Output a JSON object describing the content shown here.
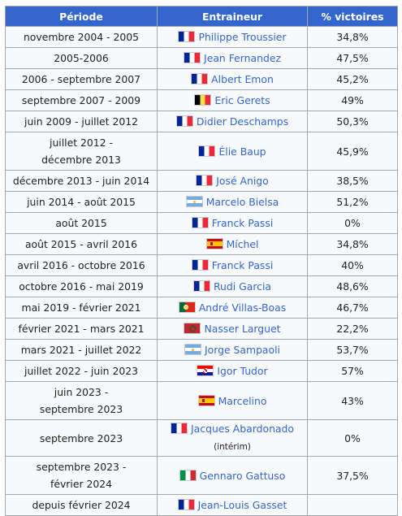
{
  "table": {
    "headers": {
      "period": "Période",
      "coach": "Entraineur",
      "win_pct": "% victoires"
    },
    "rows": [
      {
        "period": "novembre 2004 - 2005",
        "flag": "flag-france",
        "coach": "Philippe Troussier",
        "note": "",
        "win_pct": "34,8%"
      },
      {
        "period": "2005-2006",
        "flag": "flag-france",
        "coach": "Jean Fernandez",
        "note": "",
        "win_pct": "47,5%"
      },
      {
        "period": "2006 - septembre 2007",
        "flag": "flag-france",
        "coach": "Albert Emon",
        "note": "",
        "win_pct": "45,2%"
      },
      {
        "period": "septembre 2007 - 2009",
        "flag": "flag-belgium",
        "coach": "Eric Gerets",
        "note": "",
        "win_pct": "49%"
      },
      {
        "period": "juin 2009 - juillet 2012",
        "flag": "flag-france",
        "coach": "Didier Deschamps",
        "note": "",
        "win_pct": "50,3%"
      },
      {
        "period": "juillet 2012 - décembre 2013",
        "flag": "flag-france",
        "coach": "Élie Baup",
        "note": "",
        "win_pct": "45,9%"
      },
      {
        "period": "décembre 2013 - juin 2014",
        "flag": "flag-france",
        "coach": "José Anigo",
        "note": "",
        "win_pct": "38,5%"
      },
      {
        "period": "juin 2014 - août 2015",
        "flag": "flag-argentina",
        "coach": "Marcelo Bielsa",
        "note": "",
        "win_pct": "51,2%"
      },
      {
        "period": "août 2015",
        "flag": "flag-france",
        "coach": "Franck Passi",
        "note": "",
        "win_pct": "0%"
      },
      {
        "period": "août 2015 - avril 2016",
        "flag": "flag-spain",
        "coach": "Míchel",
        "note": "",
        "win_pct": "34,8%"
      },
      {
        "period": "avril 2016 - octobre 2016",
        "flag": "flag-france",
        "coach": "Franck Passi",
        "note": "",
        "win_pct": "40%"
      },
      {
        "period": "octobre 2016 - mai 2019",
        "flag": "flag-france",
        "coach": "Rudi Garcia",
        "note": "",
        "win_pct": "48,6%"
      },
      {
        "period": "mai 2019 - février 2021",
        "flag": "flag-portugal",
        "coach": "André Villas-Boas",
        "note": "",
        "win_pct": "46,7%"
      },
      {
        "period": "février 2021 - mars 2021",
        "flag": "flag-morocco",
        "coach": "Nasser Larguet",
        "note": "",
        "win_pct": "22,2%"
      },
      {
        "period": "mars 2021 - juillet 2022",
        "flag": "flag-argentina",
        "coach": "Jorge Sampaoli",
        "note": "",
        "win_pct": "53,7%"
      },
      {
        "period": "juillet 2022 - juin 2023",
        "flag": "flag-croatia",
        "coach": "Igor Tudor",
        "note": "",
        "win_pct": "57%"
      },
      {
        "period": "juin 2023 - septembre 2023",
        "flag": "flag-spain",
        "coach": "Marcelino",
        "note": "",
        "win_pct": "43%"
      },
      {
        "period": "septembre 2023",
        "flag": "flag-france",
        "coach": "Jacques Abardonado",
        "note": "(intérim)",
        "win_pct": "0%"
      },
      {
        "period": "septembre 2023 - février 2024",
        "flag": "flag-italy",
        "coach": "Gennaro Gattuso",
        "note": "",
        "win_pct": "37,5%"
      },
      {
        "period": "depuis février 2024",
        "flag": "flag-france",
        "coach": "Jean-Louis Gasset",
        "note": "",
        "win_pct": ""
      }
    ]
  },
  "icons": {
    "flag-france": "france-flag-icon",
    "flag-belgium": "belgium-flag-icon",
    "flag-argentina": "argentina-flag-icon",
    "flag-spain": "spain-flag-icon",
    "flag-portugal": "portugal-flag-icon",
    "flag-morocco": "morocco-flag-icon",
    "flag-croatia": "croatia-flag-icon",
    "flag-italy": "italy-flag-icon"
  },
  "colors": {
    "header_bg": "#3366cc",
    "link": "#3366cc",
    "cell_bg": "#f8f9fa",
    "border": "#a2a9b1"
  }
}
